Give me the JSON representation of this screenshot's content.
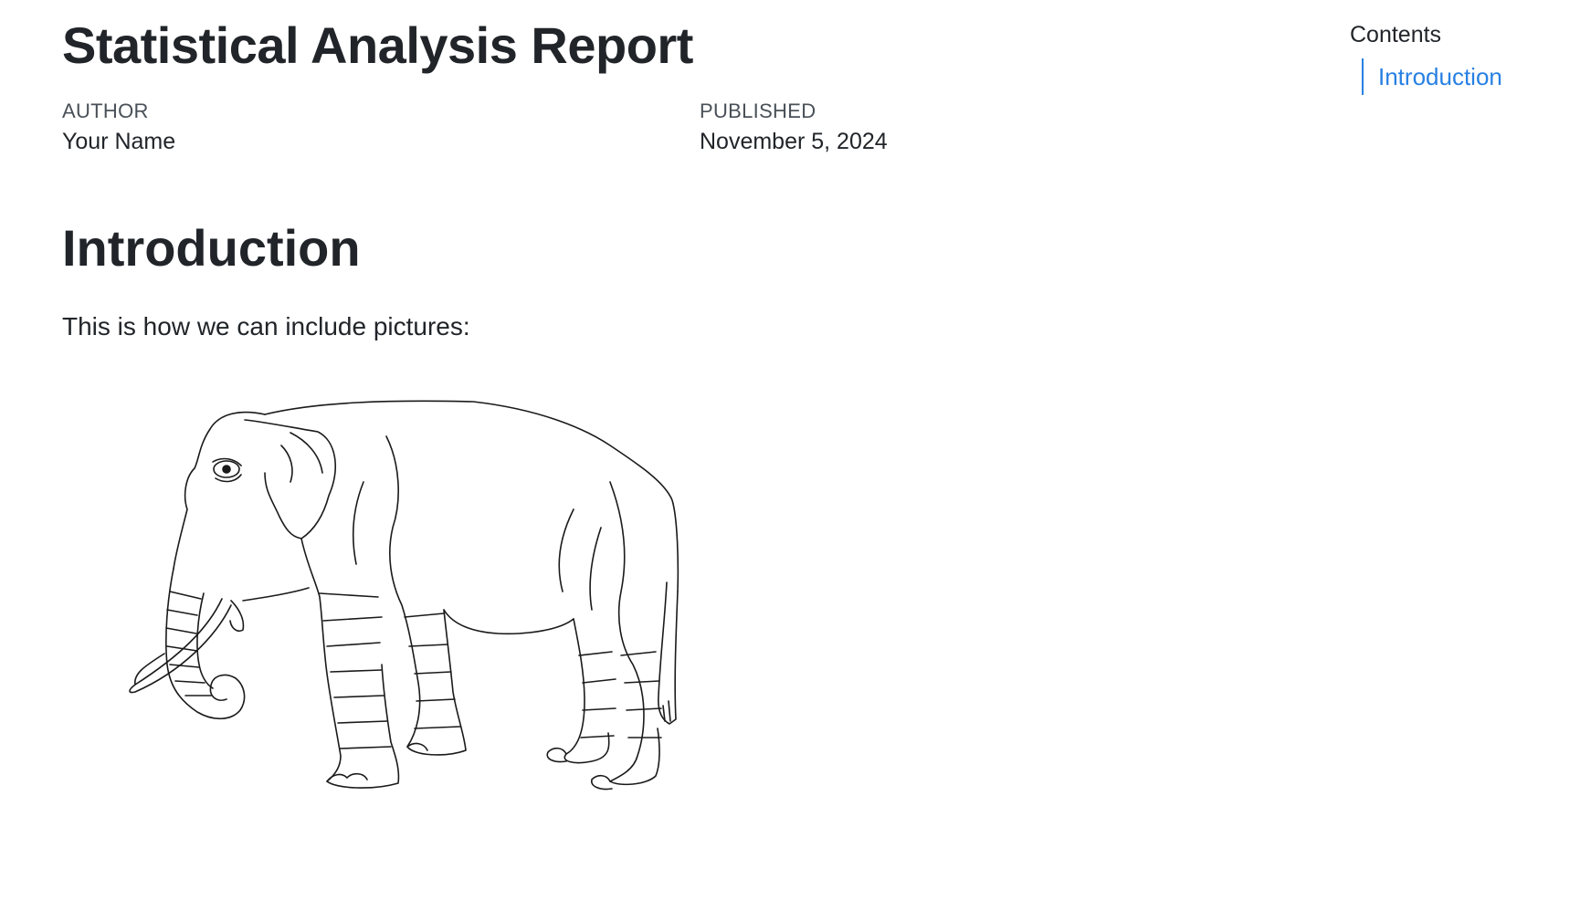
{
  "document": {
    "title": "Statistical Analysis Report",
    "author_heading": "AUTHOR",
    "author": "Your Name",
    "published_heading": "PUBLISHED",
    "published": "November 5, 2024"
  },
  "section": {
    "heading": "Introduction",
    "paragraph": "This is how we can include pictures:"
  },
  "toc": {
    "title": "Contents",
    "items": [
      {
        "label": "Introduction"
      }
    ]
  },
  "colors": {
    "text": "#212529",
    "muted": "#495057",
    "link": "#2780e3"
  }
}
